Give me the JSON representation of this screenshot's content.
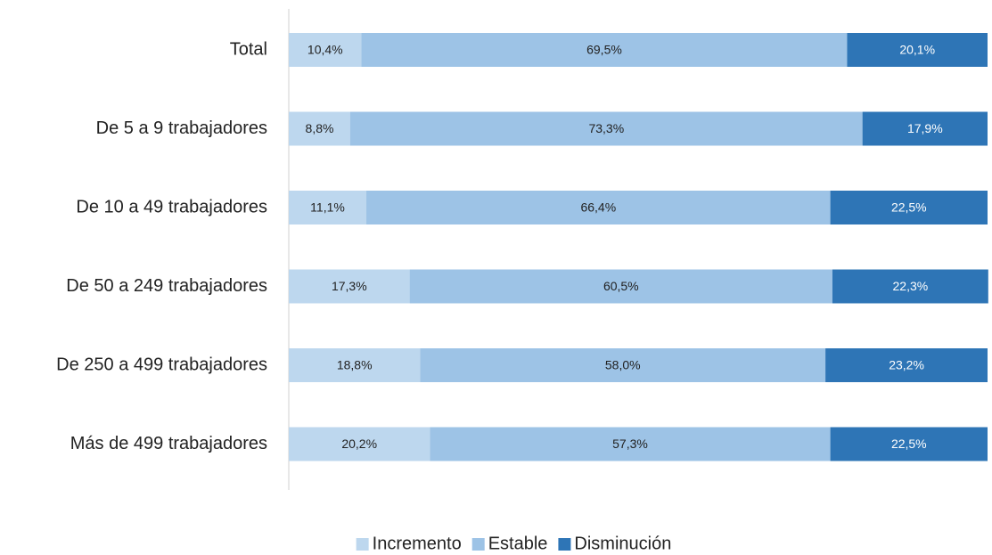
{
  "chart_data": {
    "type": "stacked_bar_horizontal",
    "categories": [
      "Total",
      "De 5 a 9 trabajadores",
      "De 10 a 49 trabajadores",
      "De 50 a 249 trabajadores",
      "De 250 a 499 trabajadores",
      "Más de 499 trabajadores"
    ],
    "xlim": [
      0,
      100
    ],
    "legend": "bottom",
    "series": [
      {
        "name": "Incremento",
        "color": "#bdd7ee",
        "label_color": "#222222",
        "values": [
          10.4,
          8.8,
          11.1,
          17.3,
          18.8,
          20.2
        ],
        "value_labels": [
          "10,4%",
          "8,8%",
          "11,1%",
          "17,3%",
          "18,8%",
          "20,2%"
        ]
      },
      {
        "name": "Estable",
        "color": "#9dc3e6",
        "label_color": "#222222",
        "values": [
          69.5,
          73.3,
          66.4,
          60.5,
          58.0,
          57.3
        ],
        "value_labels": [
          "69,5%",
          "73,3%",
          "66,4%",
          "60,5%",
          "58,0%",
          "57,3%"
        ]
      },
      {
        "name": "Disminución",
        "color": "#2e75b6",
        "label_color": "#ffffff",
        "values": [
          20.1,
          17.9,
          22.5,
          22.3,
          23.2,
          22.5
        ],
        "value_labels": [
          "20,1%",
          "17,9%",
          "22,5%",
          "22,3%",
          "23,2%",
          "22,5%"
        ]
      }
    ]
  }
}
